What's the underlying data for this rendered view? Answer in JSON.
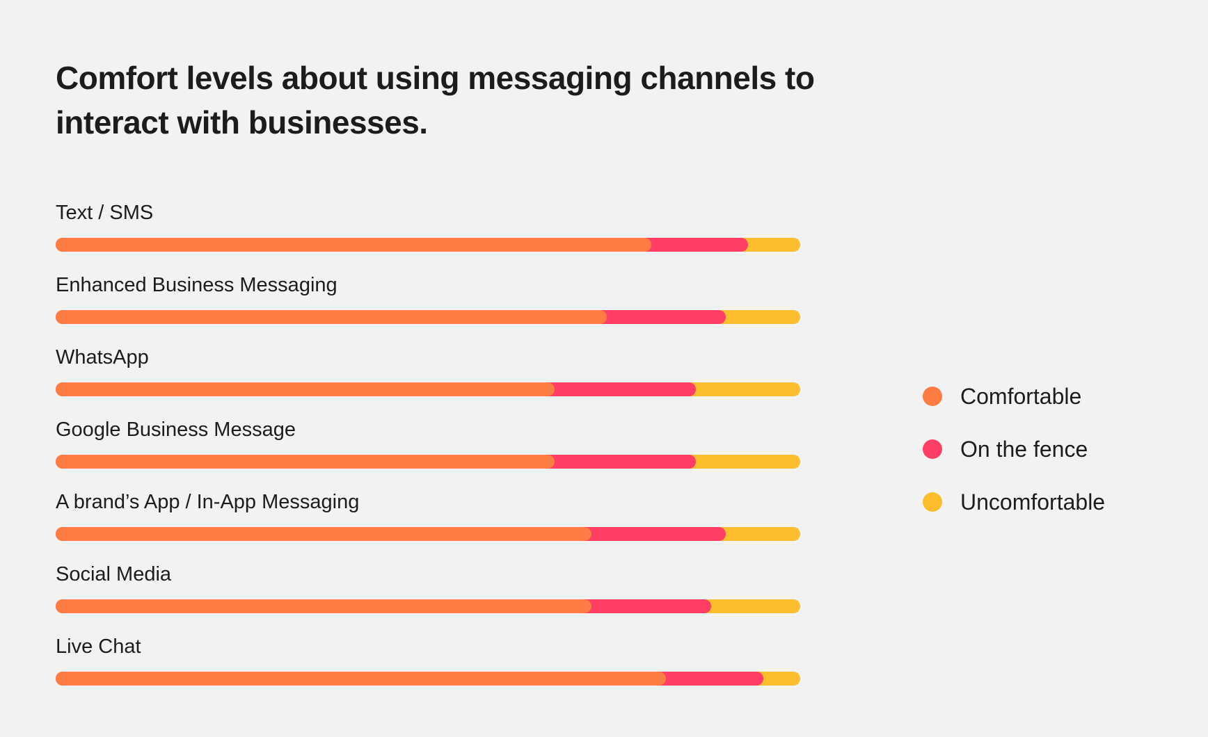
{
  "chart_data": {
    "type": "bar",
    "orientation": "horizontal",
    "stacked": true,
    "title": "Comfort levels about using messaging channels to interact with businesses.",
    "categories": [
      "Text / SMS",
      "Enhanced Business Messaging",
      "WhatsApp",
      "Google Business Message",
      "A brand’s App / In-App Messaging",
      "Social Media",
      "Live Chat"
    ],
    "series": [
      {
        "name": "Comfortable",
        "color": "#fe7b43",
        "values": [
          80,
          74,
          67,
          67,
          72,
          72,
          82
        ]
      },
      {
        "name": "On the fence",
        "color": "#ff3e66",
        "values": [
          13,
          16,
          19,
          19,
          18,
          16,
          13
        ]
      },
      {
        "name": "Uncomfortable",
        "color": "#fbbd2c",
        "values": [
          7,
          10,
          14,
          14,
          10,
          12,
          5
        ]
      }
    ],
    "xlim": [
      0,
      100
    ],
    "grid": false,
    "legend": "right"
  }
}
